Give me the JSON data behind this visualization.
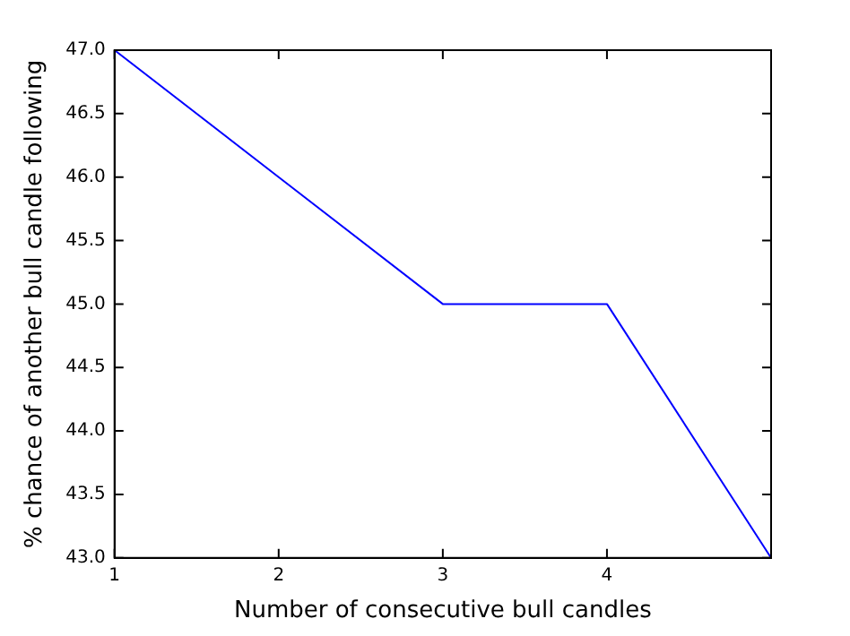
{
  "chart_data": {
    "type": "line",
    "xlabel": "Number of consecutive bull candles",
    "ylabel": "% chance of another bull candle following",
    "x": [
      1,
      2,
      3,
      4,
      5
    ],
    "series": [
      {
        "color": "#0000ff",
        "values": [
          47,
          46,
          45,
          45,
          43
        ]
      }
    ],
    "xlim": [
      1,
      5
    ],
    "xticks": [
      1,
      2,
      3,
      4,
      {
        "value": 5,
        "label": null
      }
    ],
    "ylim": [
      43,
      47
    ],
    "yticks": [
      {
        "value": 43,
        "label": "43.0"
      },
      {
        "value": 43.5,
        "label": "43.5"
      },
      {
        "value": 44,
        "label": "44.0"
      },
      {
        "value": 44.5,
        "label": "44.5"
      },
      {
        "value": 45,
        "label": "45.0"
      },
      {
        "value": 45.5,
        "label": "45.5"
      },
      {
        "value": 46,
        "label": "46.0"
      },
      {
        "value": 46.5,
        "label": "46.5"
      },
      {
        "value": 47,
        "label": "47.0"
      }
    ],
    "grid": false,
    "legend": false,
    "marker": "none",
    "line_style": "solid"
  }
}
